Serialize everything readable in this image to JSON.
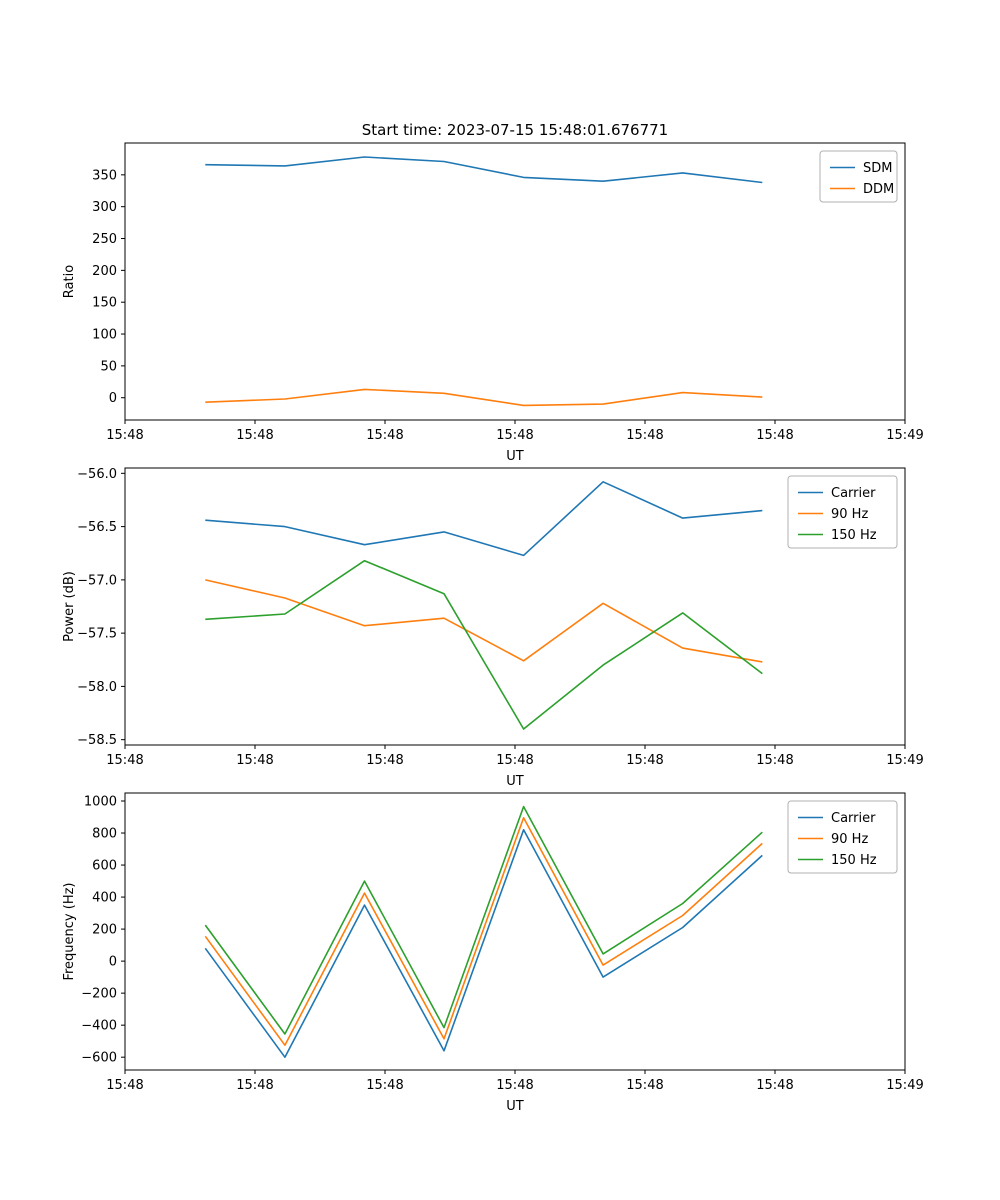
{
  "figure": {
    "background": "#ffffff",
    "axis_color": "#000000",
    "legend_border_color": "#b0b0b0"
  },
  "chart_data": [
    {
      "type": "line",
      "title": "Start time: 2023-07-15 15:48:01.676771",
      "xlabel": "UT",
      "ylabel": "Ratio",
      "grid": false,
      "legend_position": "upper right",
      "x": [
        0.103,
        0.205,
        0.307,
        0.409,
        0.511,
        0.613,
        0.715,
        0.817
      ],
      "xlim": [
        0,
        1
      ],
      "xticks": [
        0,
        0.16667,
        0.33333,
        0.5,
        0.66667,
        0.83333,
        1
      ],
      "xticklabels": [
        "15:48",
        "15:48",
        "15:48",
        "15:48",
        "15:48",
        "15:48",
        "15:49"
      ],
      "ylim": [
        -35,
        400
      ],
      "yticks": [
        0,
        50,
        100,
        150,
        200,
        250,
        300,
        350
      ],
      "yticklabels": [
        "0",
        "50",
        "100",
        "150",
        "200",
        "250",
        "300",
        "350"
      ],
      "series": [
        {
          "name": "SDM",
          "color": "#1f77b4",
          "values": [
            366,
            364,
            378,
            371,
            346,
            340,
            353,
            338
          ]
        },
        {
          "name": "DDM",
          "color": "#ff7f0e",
          "values": [
            -7,
            -2,
            13,
            7,
            -12,
            -10,
            8,
            1
          ]
        }
      ]
    },
    {
      "type": "line",
      "title": "",
      "xlabel": "UT",
      "ylabel": "Power (dB)",
      "grid": false,
      "legend_position": "upper right",
      "x": [
        0.103,
        0.205,
        0.307,
        0.409,
        0.511,
        0.613,
        0.715,
        0.817
      ],
      "xlim": [
        0,
        1
      ],
      "xticks": [
        0,
        0.16667,
        0.33333,
        0.5,
        0.66667,
        0.83333,
        1
      ],
      "xticklabels": [
        "15:48",
        "15:48",
        "15:48",
        "15:48",
        "15:48",
        "15:48",
        "15:49"
      ],
      "ylim": [
        -58.55,
        -55.95
      ],
      "yticks": [
        -58.5,
        -58.0,
        -57.5,
        -57.0,
        -56.5,
        -56.0
      ],
      "yticklabels": [
        "−58.5",
        "−58.0",
        "−57.5",
        "−57.0",
        "−56.5",
        "−56.0"
      ],
      "series": [
        {
          "name": "Carrier",
          "color": "#1f77b4",
          "values": [
            -56.44,
            -56.5,
            -56.67,
            -56.55,
            -56.77,
            -56.08,
            -56.42,
            -56.35
          ]
        },
        {
          "name": "90 Hz",
          "color": "#ff7f0e",
          "values": [
            -57.0,
            -57.17,
            -57.43,
            -57.36,
            -57.76,
            -57.22,
            -57.64,
            -57.77
          ]
        },
        {
          "name": "150 Hz",
          "color": "#2ca02c",
          "values": [
            -57.37,
            -57.32,
            -56.82,
            -57.13,
            -58.4,
            -57.8,
            -57.31,
            -57.88
          ]
        }
      ]
    },
    {
      "type": "line",
      "title": "",
      "xlabel": "UT",
      "ylabel": "Frequency (Hz)",
      "grid": false,
      "legend_position": "upper right",
      "x": [
        0.103,
        0.205,
        0.307,
        0.409,
        0.511,
        0.613,
        0.715,
        0.817
      ],
      "xlim": [
        0,
        1
      ],
      "xticks": [
        0,
        0.16667,
        0.33333,
        0.5,
        0.66667,
        0.83333,
        1
      ],
      "xticklabels": [
        "15:48",
        "15:48",
        "15:48",
        "15:48",
        "15:48",
        "15:48",
        "15:49"
      ],
      "ylim": [
        -680,
        1050
      ],
      "yticks": [
        -600,
        -400,
        -200,
        0,
        200,
        400,
        600,
        800,
        1000
      ],
      "yticklabels": [
        "−600",
        "−400",
        "−200",
        "0",
        "200",
        "400",
        "600",
        "800",
        "1000"
      ],
      "series": [
        {
          "name": "Carrier",
          "color": "#1f77b4",
          "values": [
            80,
            -600,
            350,
            -560,
            820,
            -100,
            210,
            660
          ]
        },
        {
          "name": "90 Hz",
          "color": "#ff7f0e",
          "values": [
            155,
            -525,
            425,
            -485,
            895,
            -25,
            285,
            735
          ]
        },
        {
          "name": "150 Hz",
          "color": "#2ca02c",
          "values": [
            225,
            -455,
            500,
            -415,
            965,
            45,
            360,
            805
          ]
        }
      ]
    }
  ]
}
